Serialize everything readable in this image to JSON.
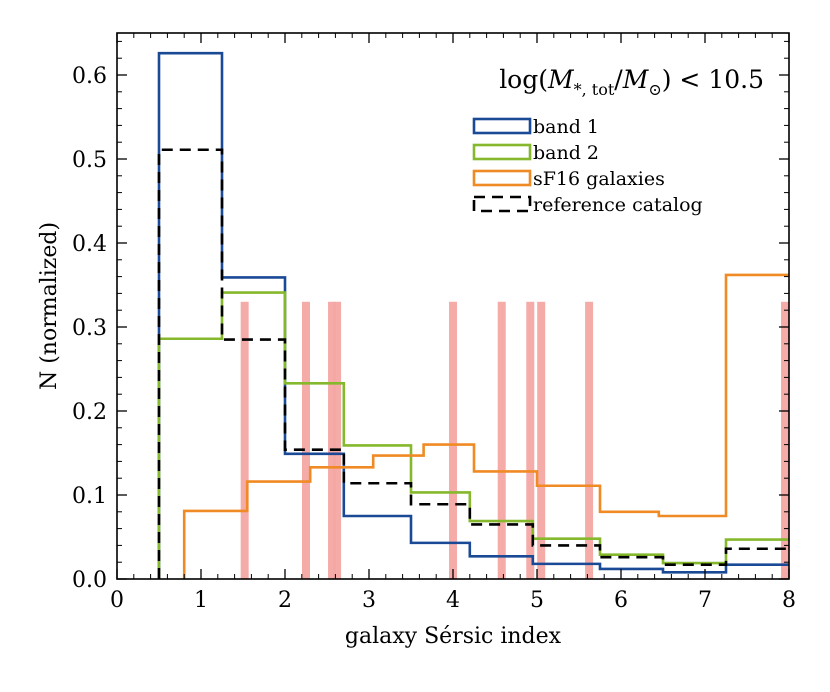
{
  "chart_data": {
    "type": "histogram",
    "title": "",
    "xlabel": "galaxy Sérsic index",
    "ylabel": "N (normalized)",
    "xlim": [
      0,
      8
    ],
    "ylim": [
      0,
      0.65
    ],
    "xticks": [
      0,
      1,
      2,
      3,
      4,
      5,
      6,
      7,
      8
    ],
    "xtick_labels": [
      "0",
      "1",
      "2",
      "3",
      "4",
      "5",
      "6",
      "7",
      "8"
    ],
    "yticks": [
      0.0,
      0.1,
      0.2,
      0.3,
      0.4,
      0.5,
      0.6
    ],
    "ytick_labels": [
      "0.0",
      "0.1",
      "0.2",
      "0.3",
      "0.4",
      "0.5",
      "0.6"
    ],
    "annotation": {
      "prefix": "log(",
      "M": "M",
      "sub1": "*, tot",
      "slash": "/",
      "M2": "M",
      "sub2": "⊙",
      "suffix": ") < 10.5"
    },
    "legend_position": "upper-right",
    "series": [
      {
        "name": "band 1",
        "color": "#1a4a96",
        "style": "solid",
        "bin_edges": [
          0.5,
          1.25,
          2.0,
          2.7,
          3.5,
          4.2,
          4.95,
          5.75,
          6.5,
          7.25,
          8.0
        ],
        "values": [
          0.626,
          0.359,
          0.149,
          0.075,
          0.043,
          0.027,
          0.018,
          0.012,
          0.008,
          0.017
        ]
      },
      {
        "name": "band 2",
        "color": "#85b82c",
        "style": "solid",
        "bin_edges": [
          0.5,
          1.25,
          2.0,
          2.7,
          3.5,
          4.2,
          4.95,
          5.75,
          6.5,
          7.25,
          8.0
        ],
        "values": [
          0.286,
          0.341,
          0.233,
          0.159,
          0.103,
          0.069,
          0.048,
          0.029,
          0.019,
          0.047
        ]
      },
      {
        "name": "sF16 galaxies",
        "color": "#f08a24",
        "style": "solid",
        "bin_edges": [
          0.8,
          1.55,
          2.3,
          3.05,
          3.65,
          4.25,
          5.0,
          5.75,
          6.45,
          7.25,
          8.0
        ],
        "values": [
          0.081,
          0.116,
          0.133,
          0.147,
          0.16,
          0.128,
          0.111,
          0.08,
          0.075,
          0.362
        ]
      },
      {
        "name": "reference catalog",
        "color": "#000000",
        "style": "dashed",
        "bin_edges": [
          0.5,
          1.25,
          2.0,
          2.7,
          3.5,
          4.2,
          4.95,
          5.75,
          6.5,
          7.25,
          8.0
        ],
        "values": [
          0.511,
          0.285,
          0.154,
          0.114,
          0.089,
          0.065,
          0.04,
          0.026,
          0.017,
          0.036
        ]
      }
    ],
    "vertical_bands": {
      "color": "#f4a7a3",
      "x": [
        1.52,
        2.25,
        2.56,
        2.62,
        4.0,
        4.58,
        4.92,
        5.05,
        5.62,
        8.0
      ],
      "height": 0.33
    }
  }
}
